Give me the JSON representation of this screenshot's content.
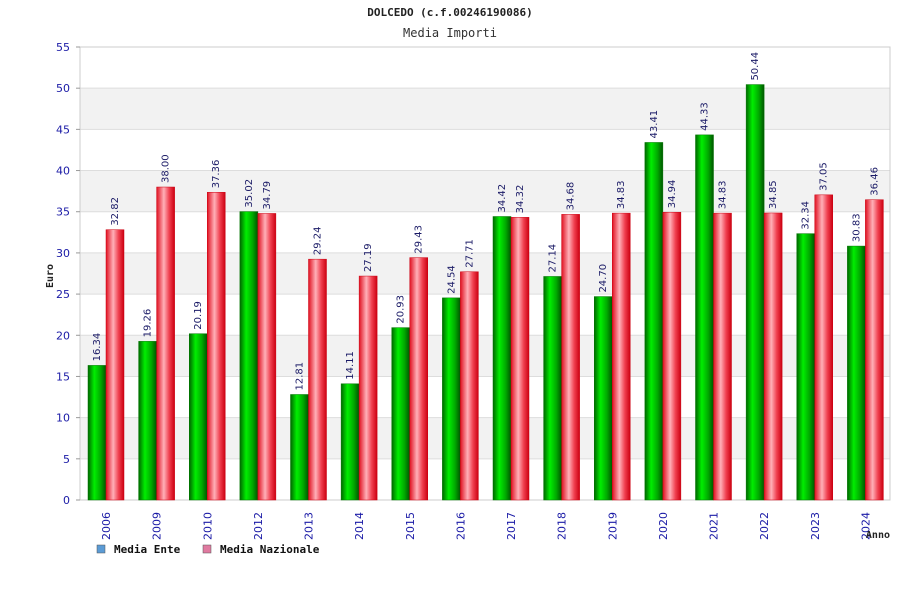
{
  "chart_data": {
    "type": "bar",
    "title": "DOLCEDO (c.f.00246190086)",
    "subtitle": "Media Importi",
    "xlabel": "Anno",
    "ylabel": "Euro",
    "ylim": [
      0,
      55
    ],
    "yticks": [
      0,
      5,
      10,
      15,
      20,
      25,
      30,
      35,
      40,
      45,
      50,
      55
    ],
    "grid": true,
    "legend_position": "bottom-left",
    "categories": [
      "2006",
      "2009",
      "2010",
      "2012",
      "2013",
      "2014",
      "2015",
      "2016",
      "2017",
      "2018",
      "2019",
      "2020",
      "2021",
      "2022",
      "2023",
      "2024"
    ],
    "series": [
      {
        "name": "Media Ente",
        "color": "#00bb00",
        "legend_color": "#5b9bd5",
        "values": [
          16.34,
          19.26,
          20.19,
          35.02,
          12.81,
          14.11,
          20.93,
          24.54,
          34.42,
          27.14,
          24.7,
          43.41,
          44.33,
          50.44,
          32.34,
          30.83
        ],
        "labels": [
          "16.34",
          "19.26",
          "20.19",
          "35.02",
          "12.81",
          "14.11",
          "20.93",
          "24.54",
          "34.42",
          "27.14",
          "24.70",
          "43.41",
          "44.33",
          "50.44",
          "32.34",
          "30.83"
        ]
      },
      {
        "name": "Media Nazionale",
        "color": "#ee1122",
        "legend_color": "#e07aa0",
        "values": [
          32.82,
          38.0,
          37.36,
          34.79,
          29.24,
          27.19,
          29.43,
          27.71,
          34.32,
          34.68,
          34.83,
          34.94,
          34.83,
          34.85,
          37.05,
          36.46
        ],
        "labels": [
          "32.82",
          "38.00",
          "37.36",
          "34.79",
          "29.24",
          "27.19",
          "29.43",
          "27.71",
          "34.32",
          "34.68",
          "34.83",
          "34.94",
          "34.83",
          "34.85",
          "37.05",
          "36.46"
        ]
      }
    ]
  }
}
